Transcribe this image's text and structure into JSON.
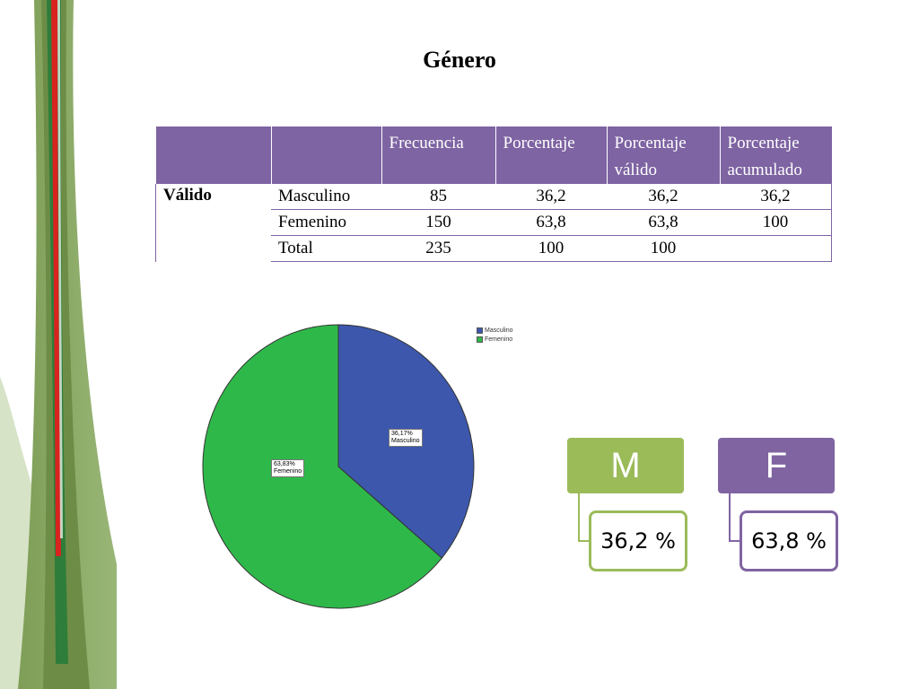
{
  "title": "Género",
  "table": {
    "headers": [
      "",
      "",
      "Frecuencia",
      "Porcentaje",
      "Porcentaje válido",
      "Porcentaje acumulado"
    ],
    "group_label": "Válido",
    "rows": [
      {
        "label": "Masculino",
        "frecuencia": "85",
        "porcentaje": "36,2",
        "valido": "36,2",
        "acumulado": "36,2"
      },
      {
        "label": "Femenino",
        "frecuencia": "150",
        "porcentaje": "63,8",
        "valido": "63,8",
        "acumulado": "100"
      },
      {
        "label": "Total",
        "frecuencia": "235",
        "porcentaje": "100",
        "valido": "100",
        "acumulado": ""
      }
    ]
  },
  "chart_data": {
    "type": "pie",
    "categories": [
      "Masculino",
      "Femenino"
    ],
    "values": [
      36.17,
      63.83
    ],
    "data_labels": [
      [
        "36,17%",
        "Masculino"
      ],
      [
        "63,83%",
        "Femenino"
      ]
    ],
    "legend": [
      "Masculino",
      "Femenino"
    ],
    "legend_position": "top-right",
    "colors": [
      "#3d57ad",
      "#2fb84a"
    ]
  },
  "cards": [
    {
      "letter": "M",
      "value": "36,2 %",
      "color": "#9bbb59"
    },
    {
      "letter": "F",
      "value": "63,8 %",
      "color": "#8064a2"
    }
  ]
}
